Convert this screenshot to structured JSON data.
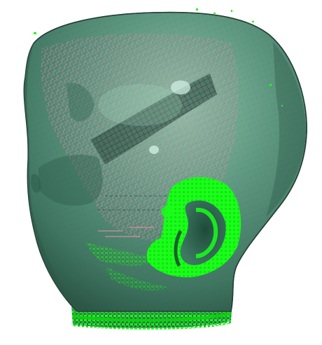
{
  "viewport": {
    "background": "#ffffff",
    "object": "head-mesh-3d",
    "colors": {
      "surface": "#4f8a73",
      "surface_dark": "#2f5f4d",
      "surface_light": "#8fc4aa",
      "outline": "#243f35",
      "pink_overlay": "#f48fb1",
      "green_overlay": "#19ff19",
      "highlight": "#cfeee1"
    }
  }
}
